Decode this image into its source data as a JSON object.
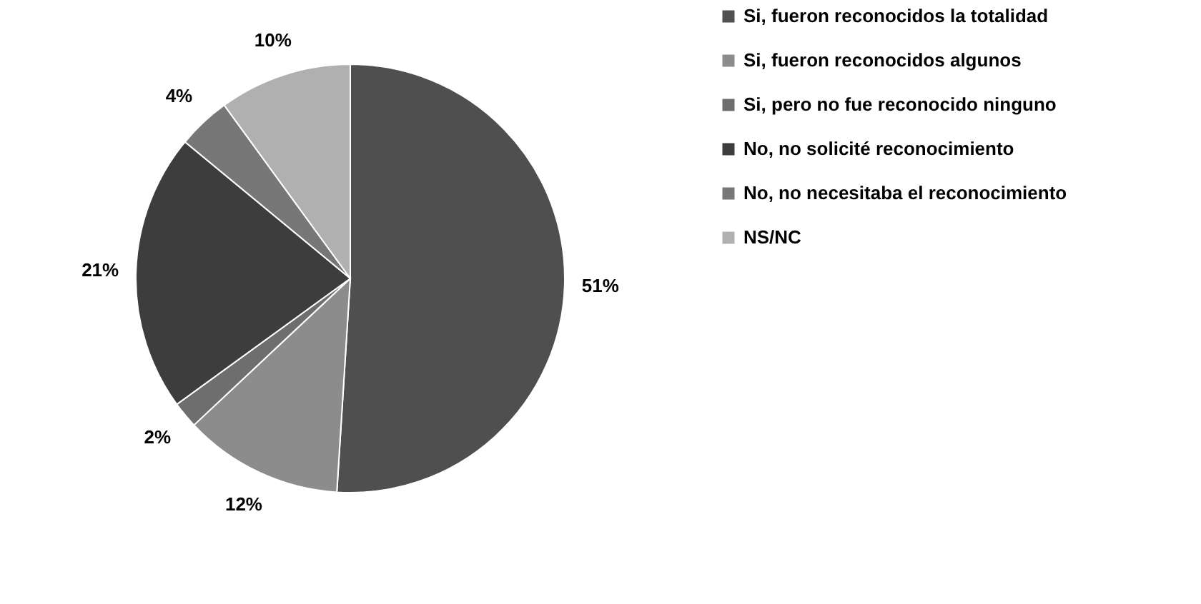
{
  "chart_data": {
    "type": "pie",
    "categories": [
      "Si, fueron reconocidos la totalidad",
      "Si, fueron reconocidos algunos",
      "Si, pero no fue reconocido ninguno",
      "No, no solicité reconocimiento",
      "No, no necesitaba el reconocimiento",
      "NS/NC"
    ],
    "values": [
      51,
      12,
      2,
      21,
      4,
      10
    ],
    "value_labels": [
      "51%",
      "12%",
      "2%",
      "21%",
      "4%",
      "10%"
    ],
    "colors": [
      "#4f4f4f",
      "#8c8c8c",
      "#6e6e6e",
      "#3d3d3d",
      "#777777",
      "#b0b0b0"
    ],
    "legend": "right"
  }
}
